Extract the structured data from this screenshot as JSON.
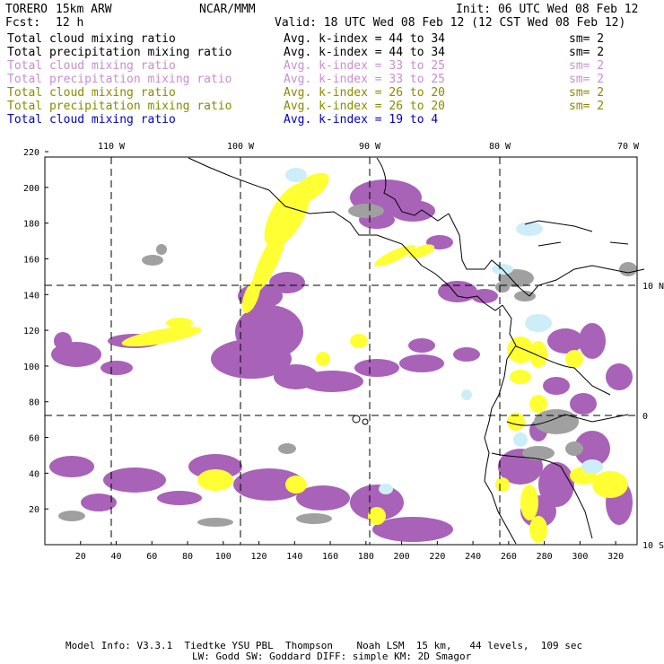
{
  "header": {
    "model": "TORERO",
    "resolution": "15km ARW",
    "org": "NCAR/MMM",
    "init": "Init: 06 UTC Wed 08 Feb 12",
    "fcst_label": "Fcst:",
    "fcst_value": "12 h",
    "valid": "Valid: 18 UTC Wed 08 Feb 12 (12 CST Wed 08 Feb 12)"
  },
  "legend": [
    {
      "field": "Total cloud mixing ratio",
      "kindex": "Avg. k-index = 44 to 34",
      "sm": "sm= 2",
      "color": "#000000"
    },
    {
      "field": "Total precipitation mixing ratio",
      "kindex": "Avg. k-index = 44 to 34",
      "sm": "sm= 2",
      "color": "#000000"
    },
    {
      "field": "Total cloud mixing ratio",
      "kindex": "Avg. k-index = 33 to 25",
      "sm": "sm= 2",
      "color": "#c88fcf"
    },
    {
      "field": "Total precipitation mixing ratio",
      "kindex": "Avg. k-index = 33 to 25",
      "sm": "sm= 2",
      "color": "#c88fcf"
    },
    {
      "field": "Total cloud mixing ratio",
      "kindex": "Avg. k-index = 26 to 20",
      "sm": "sm= 2",
      "color": "#8a8a00"
    },
    {
      "field": "Total precipitation mixing ratio",
      "kindex": "Avg. k-index = 26 to 20",
      "sm": "sm= 2",
      "color": "#8a8a00"
    },
    {
      "field": "Total cloud mixing ratio",
      "kindex": "Avg. k-index = 19 to 4",
      "sm": "",
      "color": "#0000cc"
    }
  ],
  "map": {
    "lon_labels": [
      "110 W",
      "100 W",
      "90 W",
      "80 W",
      "70 W"
    ],
    "lat_labels": [
      "10 N",
      "0",
      "10 S"
    ],
    "x_ticks": [
      "20",
      "40",
      "60",
      "80",
      "100",
      "120",
      "140",
      "160",
      "180",
      "200",
      "220",
      "240",
      "260",
      "280",
      "300",
      "320"
    ],
    "y_ticks": [
      "20",
      "40",
      "60",
      "80",
      "100",
      "120",
      "140",
      "160",
      "180",
      "200",
      "220"
    ],
    "colors": {
      "gray": "#a0a0a0",
      "purple": "#a862b8",
      "yellow": "#ffff33",
      "light_blue": "#cdeef8"
    }
  },
  "footer": {
    "line1": "Model Info: V3.3.1  Tiedtke YSU PBL  Thompson    Noah LSM  15 km,   44 levels,  109 sec",
    "line2": "LW: Godd SW: Goddard DIFF: simple KM: 2D Smagor"
  }
}
